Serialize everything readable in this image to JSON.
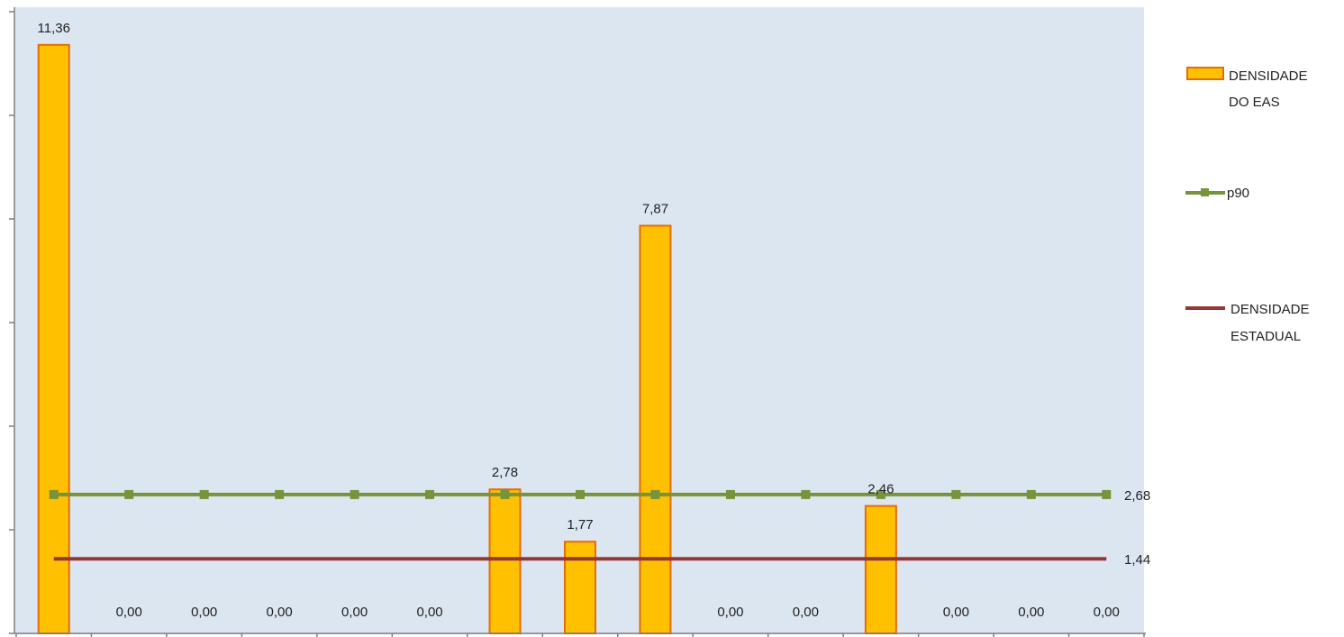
{
  "chart_data": {
    "type": "bar",
    "categories": [
      "",
      "",
      "",
      "",
      "",
      "",
      "",
      "",
      "",
      "",
      "",
      "",
      "",
      "",
      ""
    ],
    "series": [
      {
        "name": "DENSIDADE DO EAS",
        "kind": "bar",
        "values": [
          11.36,
          0,
          0,
          0,
          0,
          0,
          2.78,
          1.77,
          7.87,
          0,
          0,
          2.46,
          0,
          0,
          0
        ],
        "labels": [
          "11,36",
          "0,00",
          "0,00",
          "0,00",
          "0,00",
          "0,00",
          "2,78",
          "1,77",
          "7,87",
          "0,00",
          "0,00",
          "2,46",
          "0,00",
          "0,00",
          "0,00"
        ],
        "color": "#FFC000",
        "border": "#E46C0A"
      },
      {
        "name": "p90",
        "kind": "line",
        "value": 2.68,
        "label": "2,68",
        "color": "#77933C"
      },
      {
        "name": "DENSIDADE ESTADUAL",
        "kind": "line",
        "value": 1.44,
        "label": "1,44",
        "color": "#953735"
      }
    ],
    "legend_labels": {
      "bars_line1": "DENSIDADE",
      "bars_line2": "DO EAS",
      "p90": "p90",
      "state_line1": "DENSIDADE",
      "state_line2": "ESTADUAL"
    },
    "ylim": [
      0,
      12
    ],
    "plot_background": "#DCE6F1",
    "grid": false,
    "legend_position": "right",
    "title": "",
    "xlabel": "",
    "ylabel": ""
  }
}
